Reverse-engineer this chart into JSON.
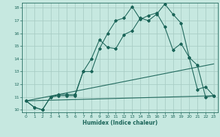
{
  "xlabel": "Humidex (Indice chaleur)",
  "bg_color": "#c6e8e0",
  "grid_color": "#a8ccc4",
  "line_color": "#1a6458",
  "xlim": [
    -0.5,
    23.5
  ],
  "ylim": [
    9.8,
    18.4
  ],
  "yticks": [
    10,
    11,
    12,
    13,
    14,
    15,
    16,
    17,
    18
  ],
  "xticks": [
    0,
    1,
    2,
    3,
    4,
    5,
    6,
    7,
    8,
    9,
    10,
    11,
    12,
    13,
    14,
    15,
    16,
    17,
    18,
    19,
    20,
    21,
    22,
    23
  ],
  "curve1_x": [
    0,
    1,
    2,
    3,
    4,
    5,
    6,
    7,
    8,
    9,
    10,
    11,
    12,
    13,
    14,
    15,
    16,
    17,
    18,
    19,
    20,
    21,
    22,
    23
  ],
  "curve1_y": [
    10.7,
    10.2,
    10.0,
    11.0,
    11.1,
    11.1,
    11.1,
    13.0,
    14.0,
    15.5,
    14.9,
    14.8,
    15.9,
    16.2,
    17.2,
    17.0,
    17.5,
    18.3,
    17.5,
    16.8,
    14.1,
    13.5,
    11.0,
    11.1
  ],
  "curve2_x": [
    0,
    1,
    2,
    3,
    4,
    5,
    6,
    7,
    8,
    9,
    10,
    11,
    12,
    13,
    14,
    15,
    16,
    17,
    18,
    19,
    20,
    21,
    22,
    23
  ],
  "curve2_y": [
    10.7,
    10.2,
    10.0,
    11.0,
    11.2,
    11.2,
    11.2,
    13.0,
    13.0,
    14.8,
    16.0,
    17.0,
    17.2,
    18.1,
    17.1,
    17.4,
    17.6,
    16.5,
    14.7,
    15.2,
    14.1,
    11.6,
    11.8,
    11.1
  ],
  "line1_x": [
    0,
    23
  ],
  "line1_y": [
    10.7,
    13.6
  ],
  "line2_x": [
    0,
    23
  ],
  "line2_y": [
    10.7,
    11.1
  ]
}
